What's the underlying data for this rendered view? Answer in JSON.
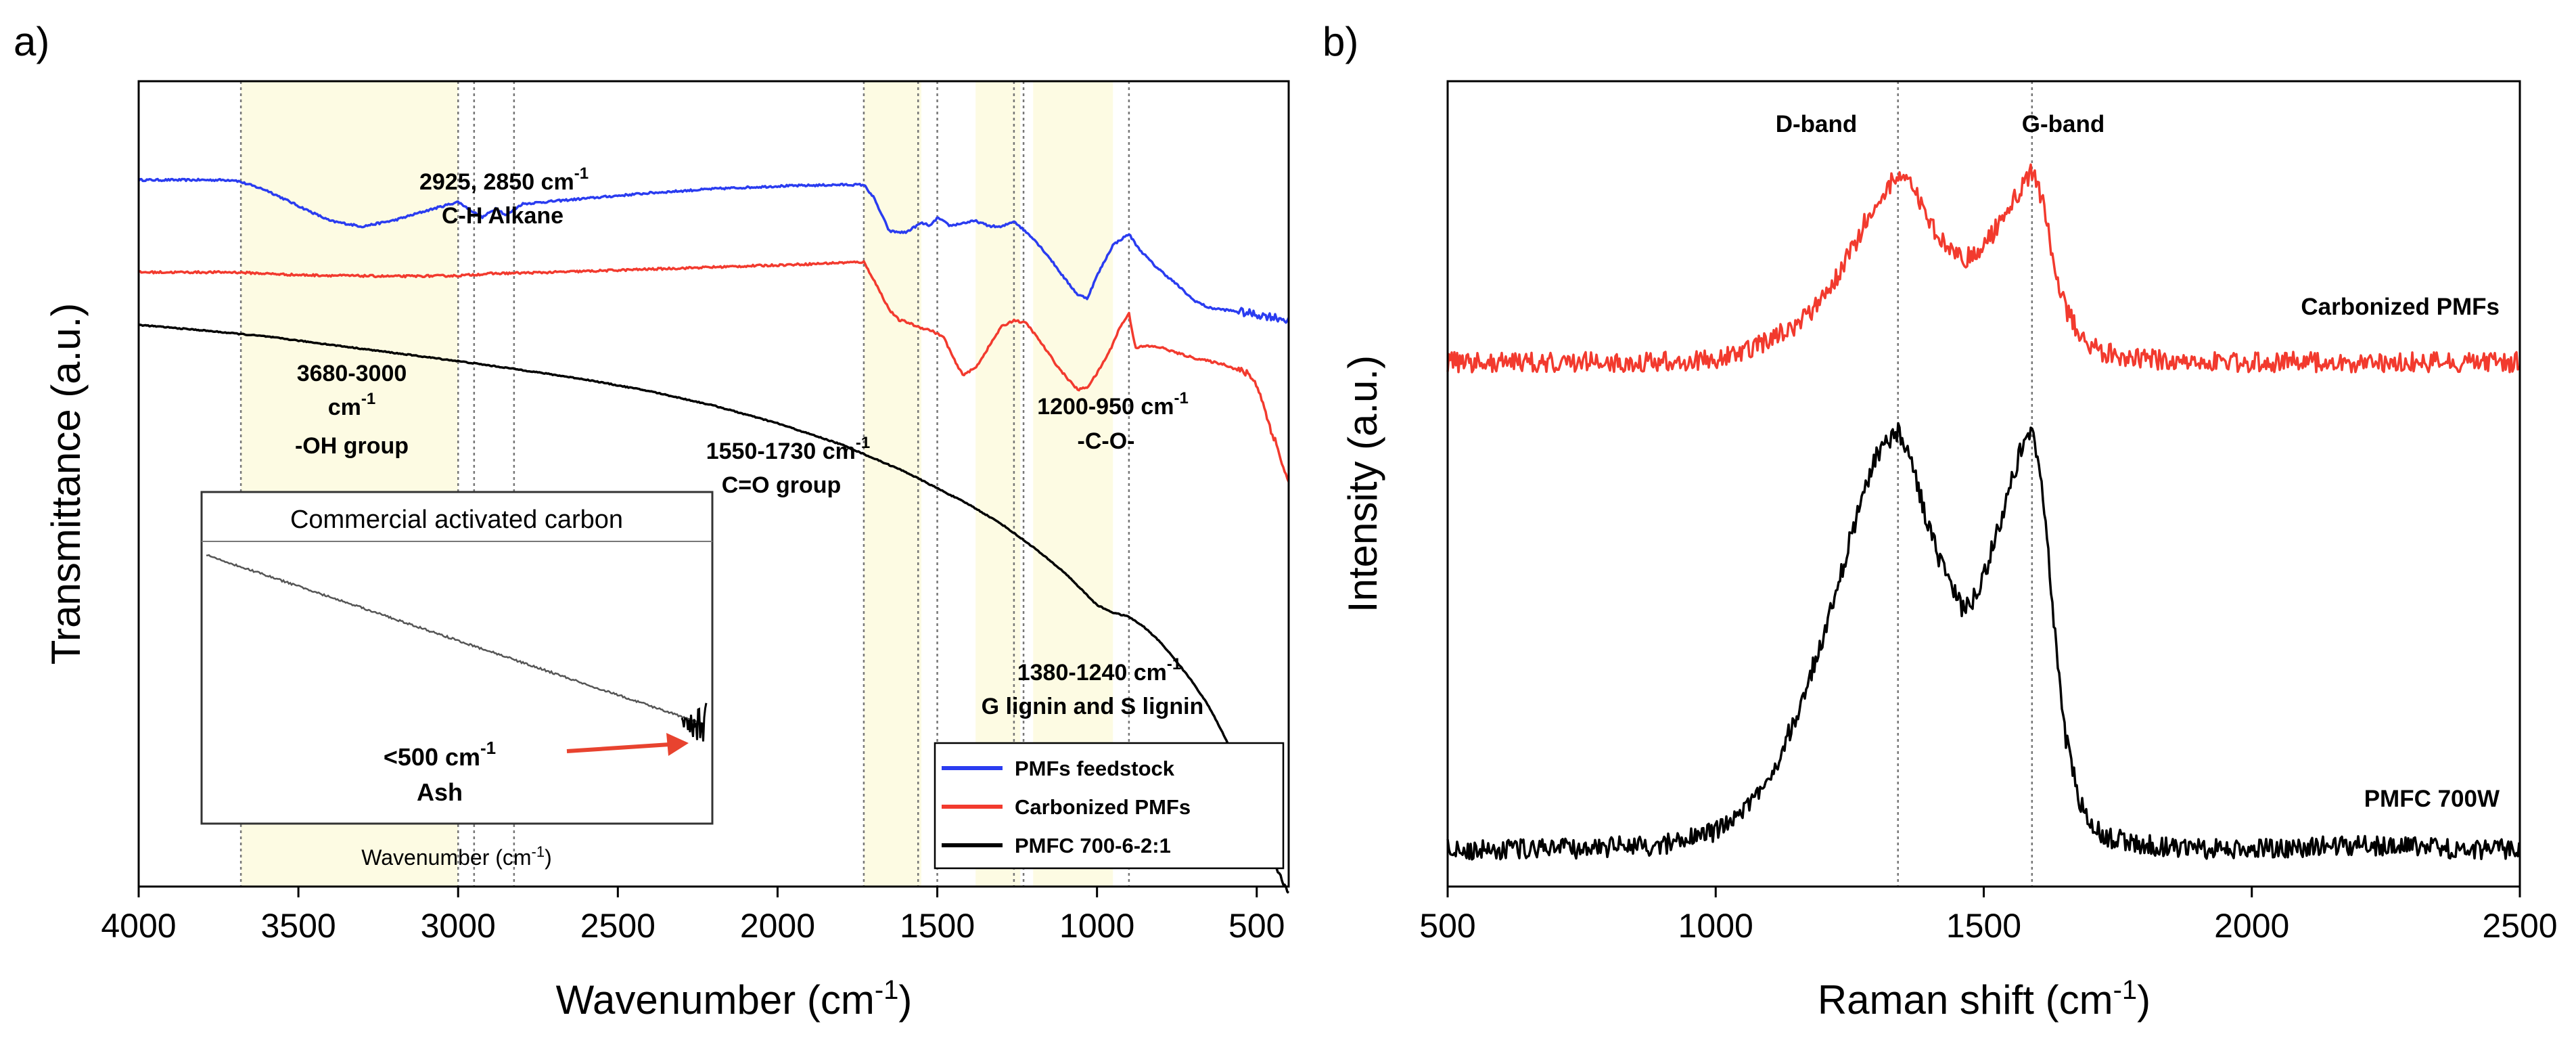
{
  "colors": {
    "blue": "#2a3cf0",
    "red": "#f23a2e",
    "black": "#000000",
    "shade": "#fdfbe3",
    "arrow": "#e8432f",
    "grid": "#777777"
  },
  "chart_data": [
    {
      "panel_label": "a)",
      "type": "line",
      "xlabel": "Wavenumber (cm",
      "xlabel_sup": "-1",
      "xlabel_close": ")",
      "ylabel": "Transmittance (a.u.)",
      "xlim": [
        4000,
        400
      ],
      "xticks": [
        "4000",
        "3500",
        "3000",
        "2500",
        "2000",
        "1500",
        "1000",
        "500"
      ],
      "xtick_values": [
        4000,
        3500,
        3000,
        2500,
        2000,
        1500,
        1000,
        500
      ],
      "shaded_regions": [
        [
          3680,
          3000
        ],
        [
          1730,
          1550
        ],
        [
          1380,
          1240
        ],
        [
          1200,
          950
        ]
      ],
      "reference_lines": [
        3680,
        3000,
        2950,
        2825,
        1730,
        1560,
        1500,
        1260,
        1230,
        900
      ],
      "annotations": [
        {
          "lines": [
            "2925, 2850 cm",
            "C-H Alkane"
          ],
          "sup": "-1"
        },
        {
          "lines": [
            "3680-3000",
            "cm",
            "-OH group"
          ],
          "sup": "-1"
        },
        {
          "lines": [
            "1550-1730 cm",
            "C=O group"
          ],
          "sup": "-1"
        },
        {
          "lines": [
            "1200-950 cm",
            "-C-O-"
          ],
          "sup": "-1"
        },
        {
          "lines": [
            "1380-1240 cm",
            "G lignin and S lignin"
          ],
          "sup": "-1"
        }
      ],
      "legend": [
        "PMFs feedstock",
        "Carbonized PMFs",
        "PMFC 700-6-2:1"
      ],
      "legend_position": "bottom-right",
      "series": [
        {
          "name": "PMFs feedstock",
          "color_key": "blue",
          "x": [
            4000,
            3700,
            3600,
            3500,
            3400,
            3300,
            3200,
            3100,
            3000,
            2925,
            2880,
            2850,
            2800,
            2600,
            2400,
            2200,
            2000,
            1800,
            1730,
            1700,
            1650,
            1600,
            1550,
            1520,
            1500,
            1460,
            1420,
            1380,
            1340,
            1300,
            1260,
            1230,
            1200,
            1150,
            1100,
            1060,
            1030,
            1000,
            950,
            900,
            870,
            820,
            750,
            700,
            650,
            600,
            550,
            500,
            450,
            400
          ],
          "y": [
            0.905,
            0.905,
            0.89,
            0.867,
            0.845,
            0.837,
            0.846,
            0.86,
            0.873,
            0.85,
            0.864,
            0.853,
            0.87,
            0.878,
            0.886,
            0.892,
            0.896,
            0.898,
            0.898,
            0.88,
            0.83,
            0.828,
            0.842,
            0.838,
            0.85,
            0.838,
            0.842,
            0.845,
            0.838,
            0.836,
            0.845,
            0.832,
            0.82,
            0.792,
            0.76,
            0.737,
            0.732,
            0.765,
            0.81,
            0.826,
            0.805,
            0.78,
            0.752,
            0.73,
            0.718,
            0.715,
            0.712,
            0.708,
            0.705,
            0.7
          ]
        },
        {
          "name": "Carbonized PMFs",
          "color_key": "red",
          "x": [
            4000,
            3700,
            3500,
            3200,
            3000,
            2900,
            2700,
            2500,
            2300,
            2100,
            1900,
            1800,
            1730,
            1700,
            1650,
            1620,
            1600,
            1560,
            1520,
            1480,
            1440,
            1420,
            1380,
            1340,
            1300,
            1260,
            1220,
            1180,
            1120,
            1080,
            1060,
            1030,
            1000,
            960,
            930,
            900,
            880,
            840,
            800,
            750,
            700,
            650,
            600,
            550,
            520,
            490,
            470,
            440,
            420,
            400
          ],
          "y": [
            0.77,
            0.77,
            0.766,
            0.764,
            0.765,
            0.768,
            0.77,
            0.773,
            0.776,
            0.779,
            0.782,
            0.784,
            0.785,
            0.76,
            0.715,
            0.7,
            0.698,
            0.69,
            0.685,
            0.675,
            0.635,
            0.62,
            0.63,
            0.66,
            0.69,
            0.7,
            0.695,
            0.67,
            0.63,
            0.608,
            0.598,
            0.602,
            0.622,
            0.655,
            0.688,
            0.71,
            0.66,
            0.662,
            0.66,
            0.652,
            0.645,
            0.64,
            0.635,
            0.625,
            0.62,
            0.595,
            0.56,
            0.52,
            0.49,
            0.46
          ]
        },
        {
          "name": "PMFC 700-6-2:1",
          "color_key": "black",
          "x": [
            4000,
            3800,
            3600,
            3400,
            3200,
            3000,
            2800,
            2600,
            2400,
            2200,
            2000,
            1800,
            1600,
            1400,
            1300,
            1200,
            1100,
            1000,
            950,
            900,
            850,
            800,
            750,
            700,
            650,
            600,
            550,
            500,
            450,
            400
          ],
          "y": [
            0.693,
            0.685,
            0.676,
            0.664,
            0.652,
            0.64,
            0.627,
            0.613,
            0.596,
            0.575,
            0.549,
            0.518,
            0.478,
            0.43,
            0.402,
            0.368,
            0.33,
            0.283,
            0.272,
            0.266,
            0.25,
            0.228,
            0.2,
            0.17,
            0.135,
            0.09,
            0.04,
            -0.03,
            -0.09,
            -0.14
          ]
        }
      ],
      "inset": {
        "title": "Commercial activated carbon",
        "xlabel": "Wavenumber (cm",
        "xlabel_sup": "-1",
        "xlabel_close": ")",
        "annotation": {
          "lines": [
            "<500 cm",
            "Ash"
          ],
          "sup": "-1"
        }
      }
    },
    {
      "panel_label": "b)",
      "type": "line",
      "xlabel": "Raman shift (cm",
      "xlabel_sup": "-1",
      "xlabel_close": ")",
      "ylabel": "Intensity (a.u.)",
      "xlim": [
        500,
        2500
      ],
      "xticks": [
        "500",
        "1000",
        "1500",
        "2000",
        "2500"
      ],
      "xtick_values": [
        500,
        1000,
        1500,
        2000,
        2500
      ],
      "reference_lines": [
        1340,
        1590
      ],
      "band_labels": [
        "D-band",
        "G-band"
      ],
      "series": [
        {
          "name": "Carbonized PMFs",
          "color_key": "red",
          "label": "Carbonized PMFs",
          "x": [
            500,
            700,
            900,
            1000,
            1050,
            1100,
            1150,
            1200,
            1250,
            1300,
            1340,
            1370,
            1400,
            1430,
            1460,
            1490,
            1520,
            1550,
            1575,
            1590,
            1610,
            1630,
            1650,
            1680,
            1720,
            1800,
            1900,
            2000,
            2200,
            2400,
            2500
          ],
          "y": [
            0.0,
            0.0,
            0.0,
            0.01,
            0.03,
            0.07,
            0.12,
            0.2,
            0.35,
            0.52,
            0.6,
            0.55,
            0.44,
            0.38,
            0.33,
            0.36,
            0.42,
            0.5,
            0.58,
            0.61,
            0.52,
            0.33,
            0.18,
            0.08,
            0.03,
            0.01,
            0.0,
            0.0,
            0.0,
            0.0,
            0.0
          ]
        },
        {
          "name": "PMFC 700W",
          "color_key": "black",
          "label": "PMFC 700W",
          "x": [
            500,
            700,
            900,
            1000,
            1050,
            1100,
            1150,
            1200,
            1250,
            1300,
            1340,
            1370,
            1400,
            1430,
            1460,
            1490,
            1520,
            1550,
            1575,
            1590,
            1610,
            1630,
            1650,
            1680,
            1720,
            1800,
            1900,
            2000,
            2200,
            2400,
            2500
          ],
          "y": [
            0.0,
            0.0,
            0.01,
            0.04,
            0.08,
            0.16,
            0.3,
            0.48,
            0.7,
            0.9,
            0.95,
            0.86,
            0.72,
            0.62,
            0.55,
            0.58,
            0.7,
            0.83,
            0.93,
            0.96,
            0.82,
            0.52,
            0.27,
            0.1,
            0.03,
            0.01,
            0.0,
            0.0,
            0.01,
            0.0,
            0.0
          ]
        }
      ]
    }
  ]
}
